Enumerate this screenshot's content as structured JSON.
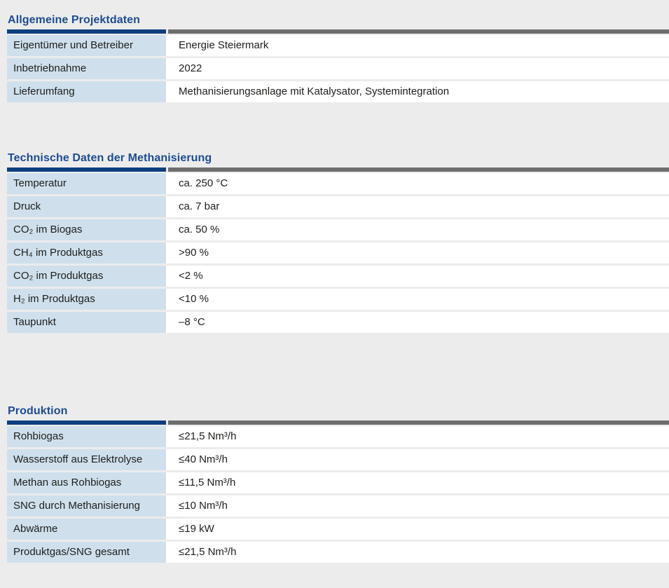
{
  "colors": {
    "page_background": "#ececec",
    "section_title": "#1c4b91",
    "header_bar_blue": "#0d3f7e",
    "header_bar_gray": "#6e6e6e",
    "label_cell_background": "#cfe0ec",
    "body_text": "#1d1d1b"
  },
  "tables": [
    {
      "title": "Allgemeine Projektdaten",
      "rows": [
        {
          "label": "Eigentümer und Betreiber",
          "value": "Energie Steiermark"
        },
        {
          "label": "Inbetriebnahme",
          "value": "2022"
        },
        {
          "label": "Lieferumfang",
          "value": "Methanisierungsanlage mit Katalysator, Systemintegration"
        }
      ]
    },
    {
      "title": "Technische Daten der Methanisierung",
      "rows": [
        {
          "label": "Temperatur",
          "value": "ca. 250 °C"
        },
        {
          "label": "Druck",
          "value": "ca. 7 bar"
        },
        {
          "label": "CO₂ im Biogas",
          "value": "ca. 50 %"
        },
        {
          "label": "CH₄ im Produktgas",
          "value": ">90 %"
        },
        {
          "label": "CO₂ im Produktgas",
          "value": "<2 %"
        },
        {
          "label": "H₂ im Produktgas",
          "value": "<10 %"
        },
        {
          "label": "Taupunkt",
          "value": "–8 °C"
        }
      ]
    },
    {
      "title": "Produktion",
      "rows": [
        {
          "label": "Rohbiogas",
          "value": "≤21,5 Nm³/h"
        },
        {
          "label": "Wasserstoff aus Elektrolyse",
          "value": "≤40 Nm³/h"
        },
        {
          "label": "Methan aus Rohbiogas",
          "value": "≤11,5 Nm³/h"
        },
        {
          "label": "SNG durch Methanisierung",
          "value": "≤10 Nm³/h"
        },
        {
          "label": "Abwärme",
          "value": "≤19 kW"
        },
        {
          "label": "Produktgas/SNG gesamt",
          "value": "≤21,5 Nm³/h"
        }
      ]
    }
  ]
}
